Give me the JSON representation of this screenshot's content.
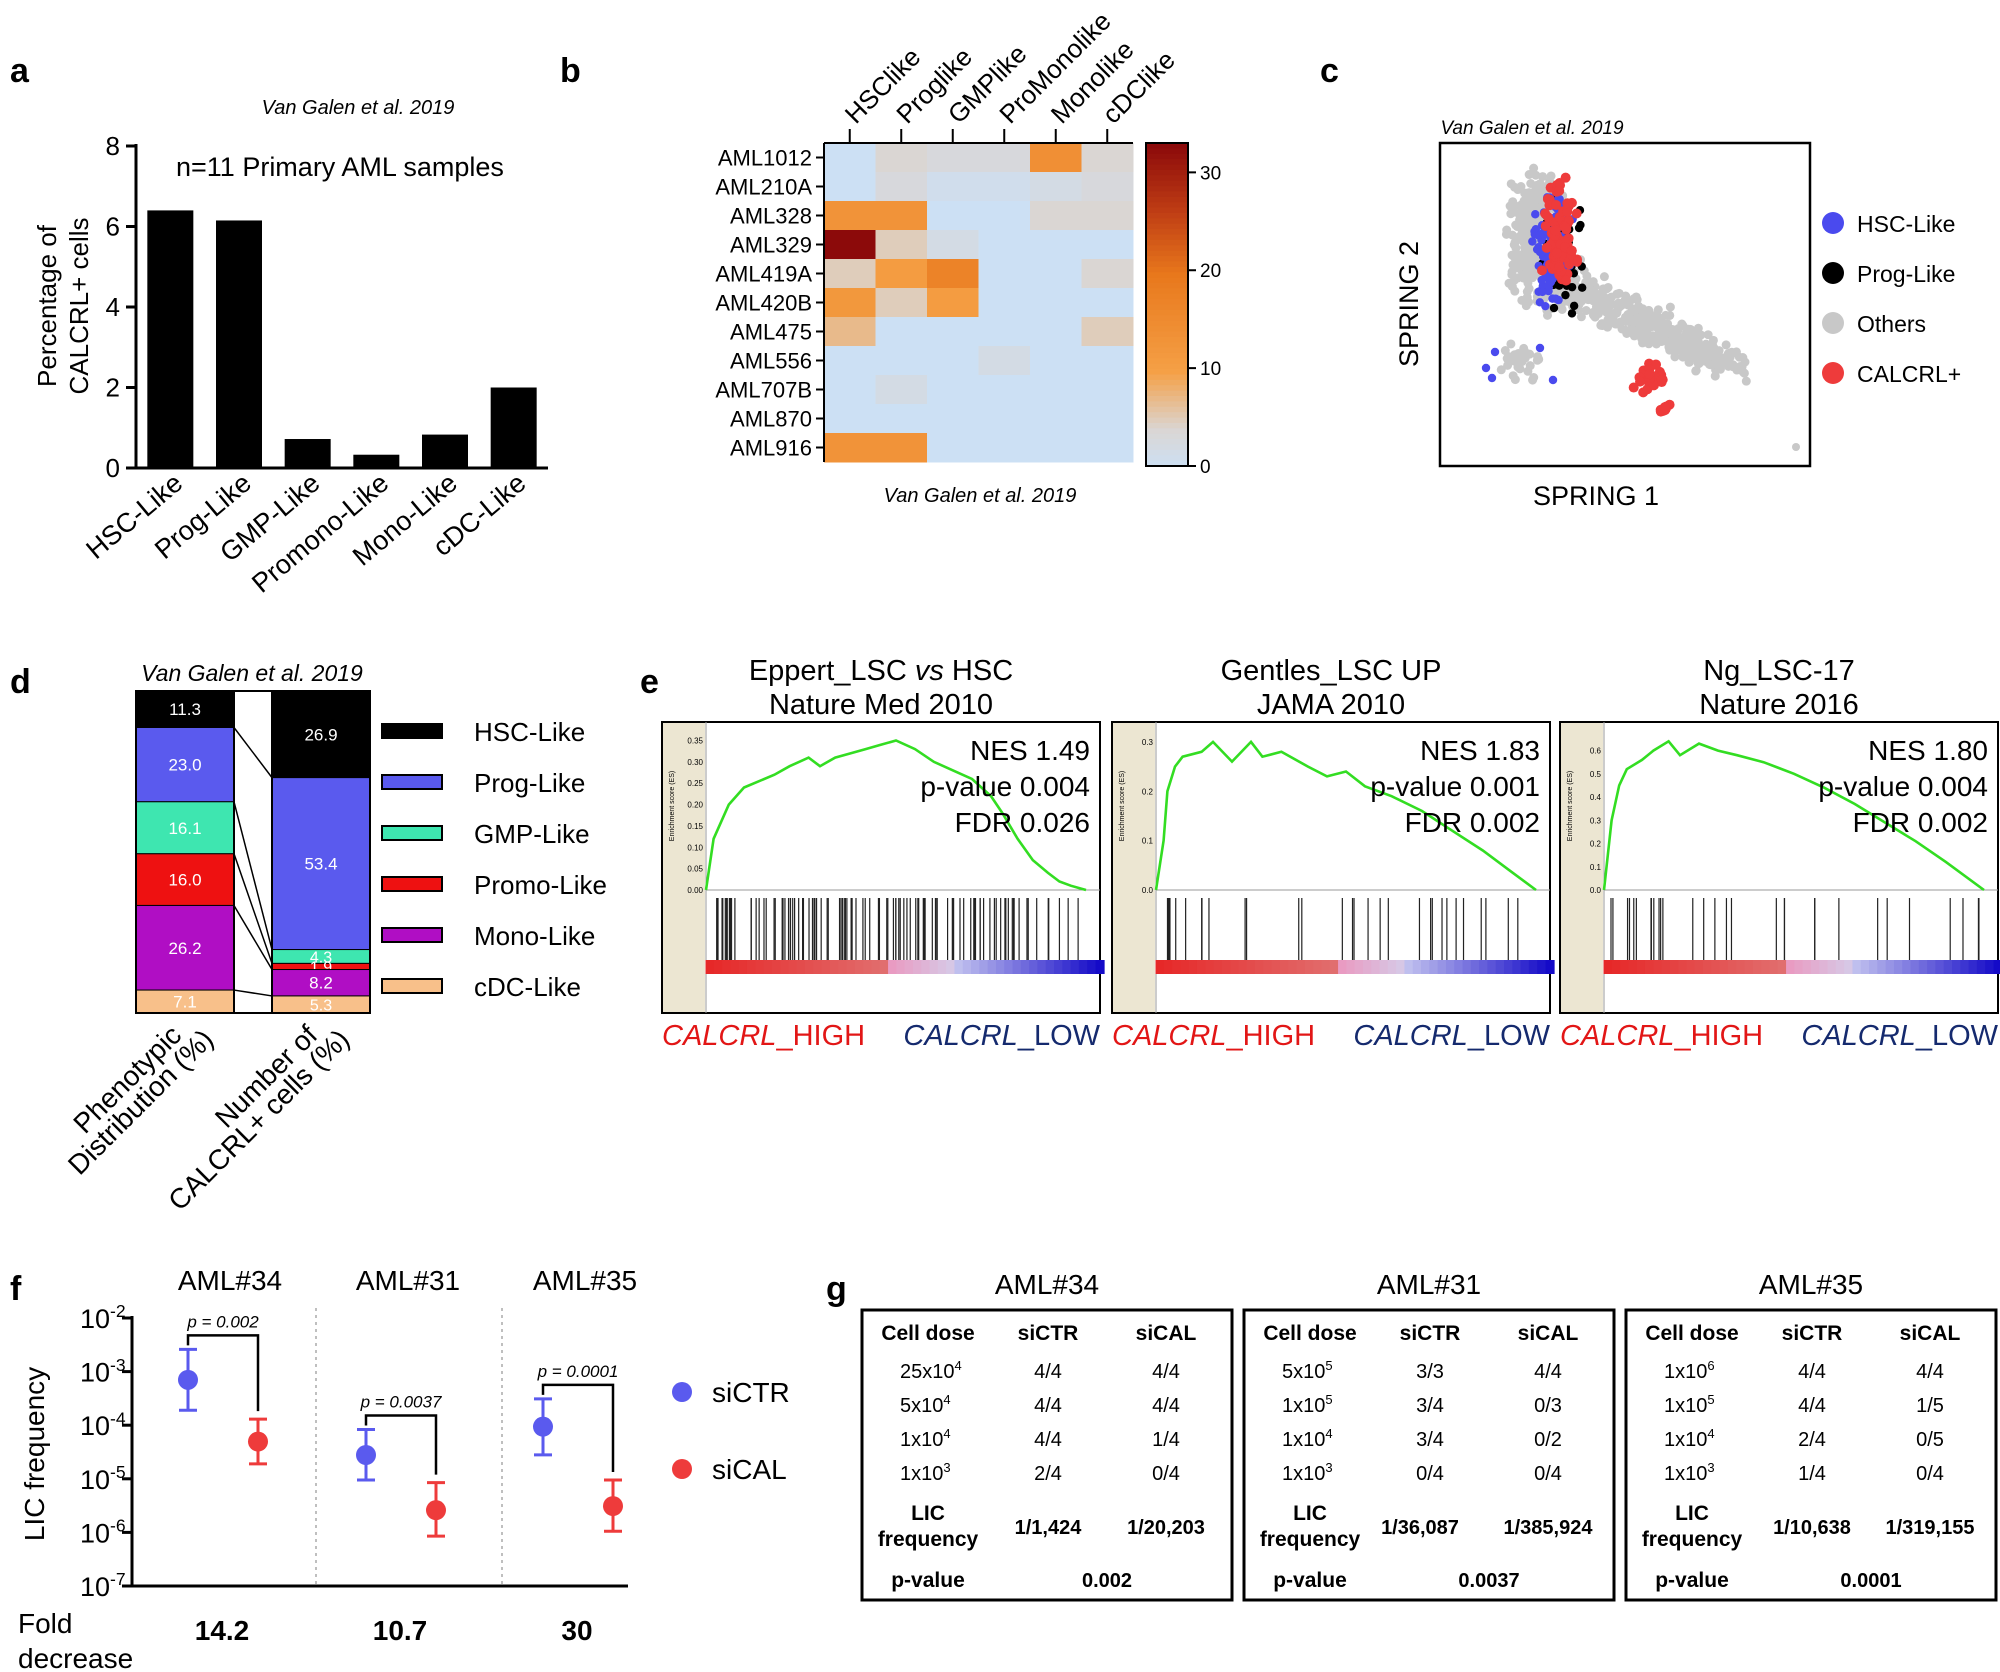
{
  "panel_letters": [
    "a",
    "b",
    "c",
    "d",
    "e",
    "f",
    "g"
  ],
  "source_label": "Van Galen et al. 2019",
  "chart_data": [
    {
      "id": "a",
      "type": "bar",
      "title": "n=11 Primary AML samples",
      "categories": [
        "HSC-Like",
        "Prog-Like",
        "GMP-Like",
        "Promono-Like",
        "Mono-Like",
        "cDC-Like"
      ],
      "values": [
        6.4,
        6.15,
        0.72,
        0.33,
        0.83,
        2.0
      ],
      "ylabel_lines": [
        "Percentage of",
        "CALCRL+ cells"
      ],
      "ylim": [
        0,
        8
      ],
      "yticks": [
        0,
        2,
        4,
        6,
        8
      ]
    },
    {
      "id": "b",
      "type": "heatmap",
      "columns": [
        "HSClike",
        "Proglike",
        "GMPlike",
        "ProMonolike",
        "Monolike",
        "cDClike"
      ],
      "rows": [
        "AML1012",
        "AML210A",
        "AML328",
        "AML329",
        "AML419A",
        "AML420B",
        "AML475",
        "AML556",
        "AML707B",
        "AML870",
        "AML916"
      ],
      "values": [
        [
          0,
          4,
          3,
          3,
          14,
          4
        ],
        [
          0,
          3,
          1,
          1,
          2,
          3
        ],
        [
          13,
          13,
          0,
          0,
          4,
          4
        ],
        [
          33,
          5,
          2,
          0,
          0,
          0
        ],
        [
          5,
          11,
          17,
          0,
          0,
          4
        ],
        [
          12,
          5,
          11,
          0,
          0,
          0
        ],
        [
          7,
          0,
          0,
          0,
          0,
          5
        ],
        [
          0,
          0,
          0,
          2,
          0,
          0
        ],
        [
          0,
          2,
          0,
          0,
          0,
          0
        ],
        [
          0,
          0,
          0,
          0,
          0,
          0
        ],
        [
          13,
          13,
          0,
          0,
          0,
          0
        ]
      ],
      "colorbar_ticks": [
        0,
        10,
        20,
        30
      ],
      "range": [
        0,
        33
      ]
    },
    {
      "id": "c",
      "type": "scatter",
      "xlabel": "SPRING 1",
      "ylabel": "SPRING 2",
      "legend": [
        {
          "label": "HSC-Like",
          "color": "#4a4aee"
        },
        {
          "label": "Prog-Like",
          "color": "#000000"
        },
        {
          "label": "Others",
          "color": "#c8c8c8"
        },
        {
          "label": "CALCRL+",
          "color": "#ee3b3b"
        }
      ]
    },
    {
      "id": "d",
      "type": "bar",
      "stacked_columns": [
        {
          "label_lines": [
            "Phenotypic",
            "Distribution (%)"
          ],
          "values": [
            11.3,
            23.0,
            16.1,
            16.0,
            26.2,
            7.1
          ]
        },
        {
          "label_lines": [
            "Number of",
            "CALCRL+ cells (%)"
          ],
          "values": [
            26.9,
            53.4,
            4.3,
            1.9,
            8.2,
            5.3
          ]
        }
      ],
      "segment_labels": [
        [
          "11.3",
          "23.0",
          "16.1",
          "16.0",
          "26.2",
          "7.1"
        ],
        [
          "26.9",
          "53.4",
          "4.3",
          "1.9",
          "8.2",
          "5.3"
        ]
      ],
      "legend": [
        {
          "label": "HSC-Like",
          "color": "#000000"
        },
        {
          "label": "Prog-Like",
          "color": "#5a5aee"
        },
        {
          "label": "GMP-Like",
          "color": "#3ee6b0"
        },
        {
          "label": "Promo-Like",
          "color": "#ee1111"
        },
        {
          "label": "Mono-Like",
          "color": "#b00ec4"
        },
        {
          "label": "cDC-Like",
          "color": "#f8c08a"
        }
      ]
    },
    {
      "id": "e",
      "type": "line",
      "plots": [
        {
          "title1_pre": "Eppert_LSC ",
          "title1_it": "vs",
          "title1_post": " HSC",
          "title2": "Nature Med 2010",
          "nes": "NES 1.49",
          "pval": "p-value 0.004",
          "fdr": "FDR 0.026",
          "yticks": [
            "0.35",
            "0.30",
            "0.25",
            "0.20",
            "0.15",
            "0.10",
            "0.05",
            "0.00"
          ],
          "ymax": 0.37,
          "es_x": [
            0,
            0.02,
            0.06,
            0.1,
            0.18,
            0.22,
            0.27,
            0.3,
            0.34,
            0.38,
            0.42,
            0.46,
            0.5,
            0.55,
            0.6,
            0.65,
            0.7,
            0.75,
            0.78,
            0.82,
            0.86,
            0.9,
            0.93,
            0.96,
            1.0
          ],
          "es_y": [
            0,
            0.12,
            0.2,
            0.24,
            0.27,
            0.29,
            0.31,
            0.29,
            0.31,
            0.32,
            0.33,
            0.34,
            0.35,
            0.33,
            0.3,
            0.28,
            0.26,
            0.22,
            0.18,
            0.12,
            0.07,
            0.04,
            0.02,
            0.01,
            0.0
          ]
        },
        {
          "title1_pre": "Gentles_LSC UP",
          "title1_it": "",
          "title1_post": "",
          "title2": "JAMA 2010",
          "nes": "NES 1.83",
          "pval": "p-value 0.001",
          "fdr": "FDR 0.002",
          "yticks": [
            "0.3",
            "0.2",
            "0.1",
            "0.0"
          ],
          "ymax": 0.32,
          "es_x": [
            0,
            0.02,
            0.03,
            0.05,
            0.07,
            0.12,
            0.15,
            0.2,
            0.25,
            0.28,
            0.33,
            0.4,
            0.45,
            0.5,
            0.55,
            0.62,
            0.7,
            0.78,
            0.86,
            0.93,
            1.0
          ],
          "es_y": [
            0,
            0.1,
            0.2,
            0.25,
            0.27,
            0.28,
            0.3,
            0.26,
            0.3,
            0.27,
            0.28,
            0.25,
            0.23,
            0.24,
            0.21,
            0.19,
            0.16,
            0.12,
            0.08,
            0.04,
            0.0
          ]
        },
        {
          "title1_pre": "Ng_LSC-17",
          "title1_it": "",
          "title1_post": "",
          "title2": "Nature 2016",
          "nes": "NES 1.80",
          "pval": "p-value 0.004",
          "fdr": "FDR 0.002",
          "yticks": [
            "0.6",
            "0.5",
            "0.4",
            "0.3",
            "0.2",
            "0.1",
            "0.0"
          ],
          "ymax": 0.68,
          "es_x": [
            0,
            0.02,
            0.04,
            0.06,
            0.1,
            0.13,
            0.17,
            0.2,
            0.25,
            0.3,
            0.35,
            0.42,
            0.5,
            0.58,
            0.66,
            0.74,
            0.82,
            0.9,
            1.0
          ],
          "es_y": [
            0,
            0.3,
            0.45,
            0.52,
            0.56,
            0.6,
            0.64,
            0.58,
            0.63,
            0.6,
            0.58,
            0.55,
            0.5,
            0.44,
            0.37,
            0.29,
            0.21,
            0.12,
            0.0
          ]
        }
      ],
      "high_it": "CALCRL",
      "high_suffix": "_HIGH",
      "low_it": "CALCRL",
      "low_suffix": "_LOW",
      "es_axis_label": "Enrichment score (ES)"
    },
    {
      "id": "f",
      "type": "scatter",
      "ylabel": "LIC frequency",
      "groups": [
        "AML#34",
        "AML#31",
        "AML#35"
      ],
      "series": [
        {
          "name": "siCTR",
          "color": "#5a5aee",
          "values": [
            0.000702,
            2.78e-05,
            9.4e-05
          ],
          "lower": [
            0.00019,
            9.5e-06,
            2.8e-05
          ],
          "upper": [
            0.0026,
            8.3e-05,
            0.00031
          ]
        },
        {
          "name": "siCAL",
          "color": "#ee3b3b",
          "values": [
            4.95e-05,
            2.6e-06,
            3.1e-06
          ],
          "lower": [
            1.9e-05,
            8.5e-07,
            1.05e-06
          ],
          "upper": [
            0.00013,
            8.5e-06,
            9.5e-06
          ]
        }
      ],
      "pvalues": [
        "p = 0.002",
        "p = 0.0037",
        "p = 0.0001"
      ],
      "ylim_log10": [
        -7,
        -2
      ],
      "ytick_base": [
        "10",
        "10",
        "10",
        "10",
        "10",
        "10"
      ],
      "ytick_exp": [
        "-2",
        "-3",
        "-4",
        "-5",
        "-6",
        "-7"
      ],
      "fold_label_lines": [
        "Fold",
        "decrease"
      ],
      "fold_values": [
        "14.2",
        "10.7",
        "30"
      ]
    },
    {
      "id": "g",
      "type": "table",
      "tables": [
        {
          "title": "AML#34",
          "headers": [
            "Cell dose",
            "siCTR",
            "siCAL"
          ],
          "rows": [
            {
              "base": "25x10",
              "exp": "4",
              "ctr": "4/4",
              "cal": "4/4"
            },
            {
              "base": "5x10",
              "exp": "4",
              "ctr": "4/4",
              "cal": "4/4"
            },
            {
              "base": "1x10",
              "exp": "4",
              "ctr": "4/4",
              "cal": "1/4"
            },
            {
              "base": "1x10",
              "exp": "3",
              "ctr": "2/4",
              "cal": "0/4"
            }
          ],
          "lic_label_lines": [
            "LIC",
            "frequency"
          ],
          "lic_ctr": "1/1,424",
          "lic_cal": "1/20,203",
          "pvalue_label": "p-value",
          "pvalue": "0.002"
        },
        {
          "title": "AML#31",
          "headers": [
            "Cell dose",
            "siCTR",
            "siCAL"
          ],
          "rows": [
            {
              "base": "5x10",
              "exp": "5",
              "ctr": "3/3",
              "cal": "4/4"
            },
            {
              "base": "1x10",
              "exp": "5",
              "ctr": "3/4",
              "cal": "0/3"
            },
            {
              "base": "1x10",
              "exp": "4",
              "ctr": "3/4",
              "cal": "0/2"
            },
            {
              "base": "1x10",
              "exp": "3",
              "ctr": "0/4",
              "cal": "0/4"
            }
          ],
          "lic_label_lines": [
            "LIC",
            "frequency"
          ],
          "lic_ctr": "1/36,087",
          "lic_cal": "1/385,924",
          "pvalue_label": "p-value",
          "pvalue": "0.0037"
        },
        {
          "title": "AML#35",
          "headers": [
            "Cell dose",
            "siCTR",
            "siCAL"
          ],
          "rows": [
            {
              "base": "1x10",
              "exp": "6",
              "ctr": "4/4",
              "cal": "4/4"
            },
            {
              "base": "1x10",
              "exp": "5",
              "ctr": "4/4",
              "cal": "1/5"
            },
            {
              "base": "1x10",
              "exp": "4",
              "ctr": "2/4",
              "cal": "0/5"
            },
            {
              "base": "1x10",
              "exp": "3",
              "ctr": "1/4",
              "cal": "0/4"
            }
          ],
          "lic_label_lines": [
            "LIC",
            "frequency"
          ],
          "lic_ctr": "1/10,638",
          "lic_cal": "1/319,155",
          "pvalue_label": "p-value",
          "pvalue": "0.0001"
        }
      ]
    }
  ]
}
